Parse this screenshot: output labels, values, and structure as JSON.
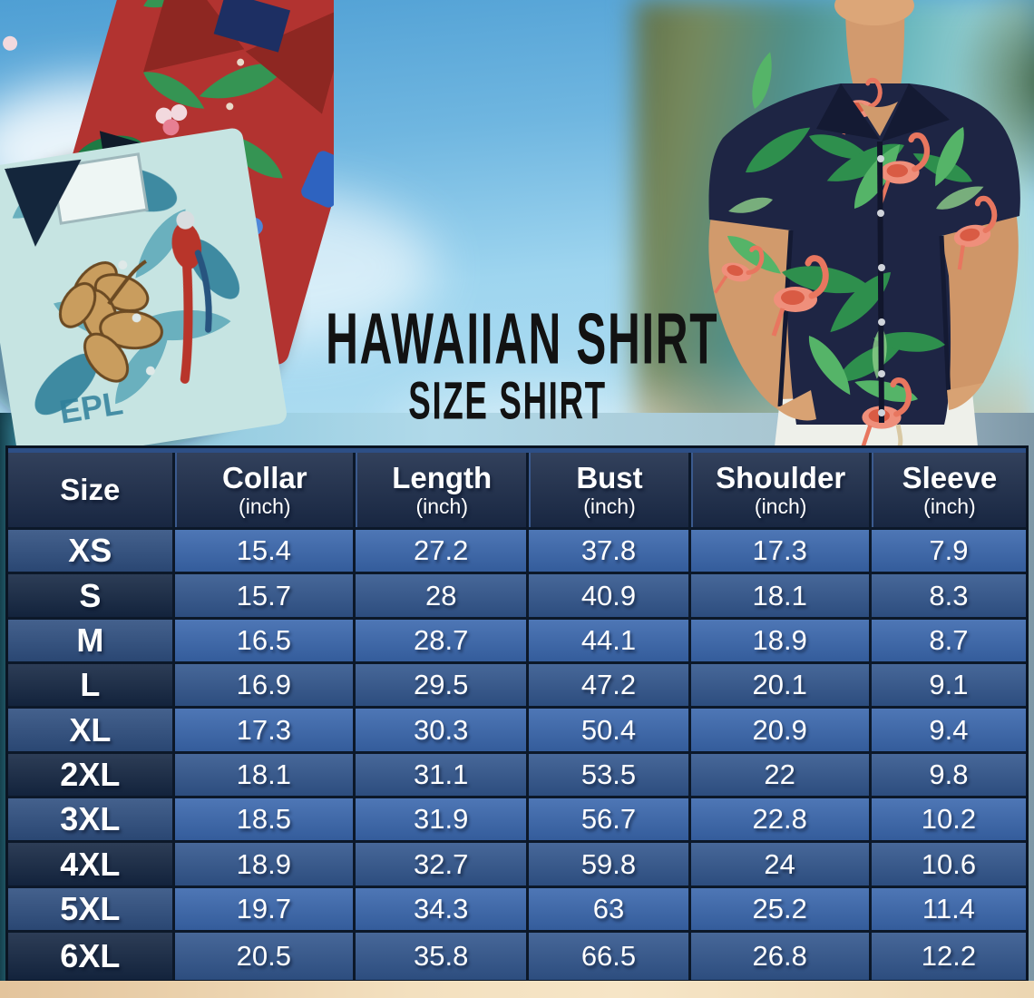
{
  "title": {
    "line1": "HAWAIIAN SHIRT",
    "line2": "SIZE SHIRT"
  },
  "size_chart": {
    "columns": [
      {
        "label": "Size",
        "unit": ""
      },
      {
        "label": "Collar",
        "unit": "(inch)"
      },
      {
        "label": "Length",
        "unit": "(inch)"
      },
      {
        "label": "Bust",
        "unit": "(inch)"
      },
      {
        "label": "Shoulder",
        "unit": "(inch)"
      },
      {
        "label": "Sleeve",
        "unit": "(inch)"
      }
    ],
    "rows": [
      {
        "size": "XS",
        "values": [
          "15.4",
          "27.2",
          "37.8",
          "17.3",
          "7.9"
        ]
      },
      {
        "size": "S",
        "values": [
          "15.7",
          "28",
          "40.9",
          "18.1",
          "8.3"
        ]
      },
      {
        "size": "M",
        "values": [
          "16.5",
          "28.7",
          "44.1",
          "18.9",
          "8.7"
        ]
      },
      {
        "size": "L",
        "values": [
          "16.9",
          "29.5",
          "47.2",
          "20.1",
          "9.1"
        ]
      },
      {
        "size": "XL",
        "values": [
          "17.3",
          "30.3",
          "50.4",
          "20.9",
          "9.4"
        ]
      },
      {
        "size": "2XL",
        "values": [
          "18.1",
          "31.1",
          "53.5",
          "22",
          "9.8"
        ]
      },
      {
        "size": "3XL",
        "values": [
          "18.5",
          "31.9",
          "56.7",
          "22.8",
          "10.2"
        ]
      },
      {
        "size": "4XL",
        "values": [
          "18.9",
          "32.7",
          "59.8",
          "24",
          "10.6"
        ]
      },
      {
        "size": "5XL",
        "values": [
          "19.7",
          "34.3",
          "63",
          "25.2",
          "11.4"
        ]
      },
      {
        "size": "6XL",
        "values": [
          "20.5",
          "35.8",
          "66.5",
          "26.8",
          "12.2"
        ]
      }
    ]
  },
  "hero": {
    "teal_shirt_print_text": "EPL"
  },
  "colors": {
    "title_color": "#121212",
    "table_border": "#0c1829",
    "header_bg": "#1b2b49",
    "row_odd_value_bg": "#3a67ad",
    "row_odd_size_bg": "#2f4f80",
    "row_even_value_bg": "#32568d",
    "row_even_size_bg": "#152743",
    "sand": "#f0dcba",
    "sky_top": "#4f9fd4"
  }
}
